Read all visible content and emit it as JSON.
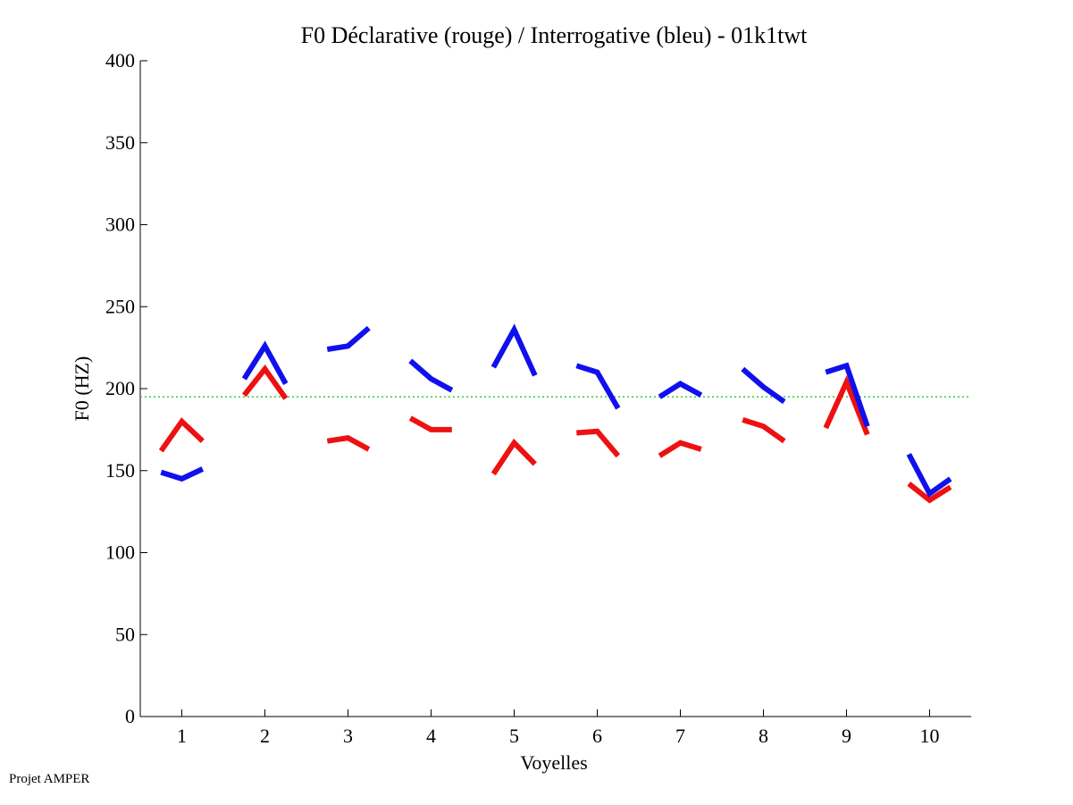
{
  "footer_text": "Projet AMPER",
  "chart_data": {
    "type": "line",
    "title": "F0 Déclarative (rouge) / Interrogative (bleu) - 01k1twt",
    "xlabel": "Voyelles",
    "ylabel": "F0 (HZ)",
    "xlim": [
      0.5,
      10.5
    ],
    "ylim": [
      0,
      400
    ],
    "xticks": [
      1,
      2,
      3,
      4,
      5,
      6,
      7,
      8,
      9,
      10
    ],
    "yticks": [
      0,
      50,
      100,
      150,
      200,
      250,
      300,
      350,
      400
    ],
    "grid": false,
    "reference_line": {
      "y": 195,
      "color": "#33cc33",
      "style": "dotted"
    },
    "colors": {
      "declarative": "#ee1111",
      "interrogative": "#1010ee"
    },
    "series": [
      {
        "name": "Déclarative",
        "color": "red",
        "segments": [
          {
            "vowel": 1,
            "points": [
              [
                0.75,
                162
              ],
              [
                1.0,
                180
              ],
              [
                1.25,
                168
              ]
            ]
          },
          {
            "vowel": 2,
            "points": [
              [
                1.75,
                196
              ],
              [
                2.0,
                212
              ],
              [
                2.25,
                194
              ]
            ]
          },
          {
            "vowel": 3,
            "points": [
              [
                2.75,
                168
              ],
              [
                3.0,
                170
              ],
              [
                3.25,
                163
              ]
            ]
          },
          {
            "vowel": 4,
            "points": [
              [
                3.75,
                182
              ],
              [
                4.0,
                175
              ],
              [
                4.25,
                175
              ]
            ]
          },
          {
            "vowel": 5,
            "points": [
              [
                4.75,
                148
              ],
              [
                5.0,
                167
              ],
              [
                5.25,
                154
              ]
            ]
          },
          {
            "vowel": 6,
            "points": [
              [
                5.75,
                173
              ],
              [
                6.0,
                174
              ],
              [
                6.25,
                159
              ]
            ]
          },
          {
            "vowel": 7,
            "points": [
              [
                6.75,
                159
              ],
              [
                7.0,
                167
              ],
              [
                7.25,
                163
              ]
            ]
          },
          {
            "vowel": 8,
            "points": [
              [
                7.75,
                181
              ],
              [
                8.0,
                177
              ],
              [
                8.25,
                168
              ]
            ]
          },
          {
            "vowel": 9,
            "points": [
              [
                8.75,
                176
              ],
              [
                9.0,
                204
              ],
              [
                9.25,
                172
              ]
            ]
          },
          {
            "vowel": 10,
            "points": [
              [
                9.75,
                142
              ],
              [
                10.0,
                132
              ],
              [
                10.25,
                140
              ]
            ]
          }
        ]
      },
      {
        "name": "Interrogative",
        "color": "blue",
        "segments": [
          {
            "vowel": 1,
            "points": [
              [
                0.75,
                149
              ],
              [
                1.0,
                145
              ],
              [
                1.25,
                151
              ]
            ]
          },
          {
            "vowel": 2,
            "points": [
              [
                1.75,
                206
              ],
              [
                2.0,
                226
              ],
              [
                2.25,
                203
              ]
            ]
          },
          {
            "vowel": 3,
            "points": [
              [
                2.75,
                224
              ],
              [
                3.0,
                226
              ],
              [
                3.25,
                237
              ]
            ]
          },
          {
            "vowel": 4,
            "points": [
              [
                3.75,
                217
              ],
              [
                4.0,
                206
              ],
              [
                4.25,
                199
              ]
            ]
          },
          {
            "vowel": 5,
            "points": [
              [
                4.75,
                213
              ],
              [
                5.0,
                236
              ],
              [
                5.25,
                208
              ]
            ]
          },
          {
            "vowel": 6,
            "points": [
              [
                5.75,
                214
              ],
              [
                6.0,
                210
              ],
              [
                6.25,
                188
              ]
            ]
          },
          {
            "vowel": 7,
            "points": [
              [
                6.75,
                195
              ],
              [
                7.0,
                203
              ],
              [
                7.25,
                196
              ]
            ]
          },
          {
            "vowel": 8,
            "points": [
              [
                7.75,
                212
              ],
              [
                8.0,
                201
              ],
              [
                8.25,
                192
              ]
            ]
          },
          {
            "vowel": 9,
            "points": [
              [
                8.75,
                210
              ],
              [
                9.0,
                214
              ],
              [
                9.25,
                177
              ]
            ]
          },
          {
            "vowel": 10,
            "points": [
              [
                9.75,
                160
              ],
              [
                10.0,
                136
              ],
              [
                10.25,
                145
              ]
            ]
          }
        ]
      }
    ]
  }
}
